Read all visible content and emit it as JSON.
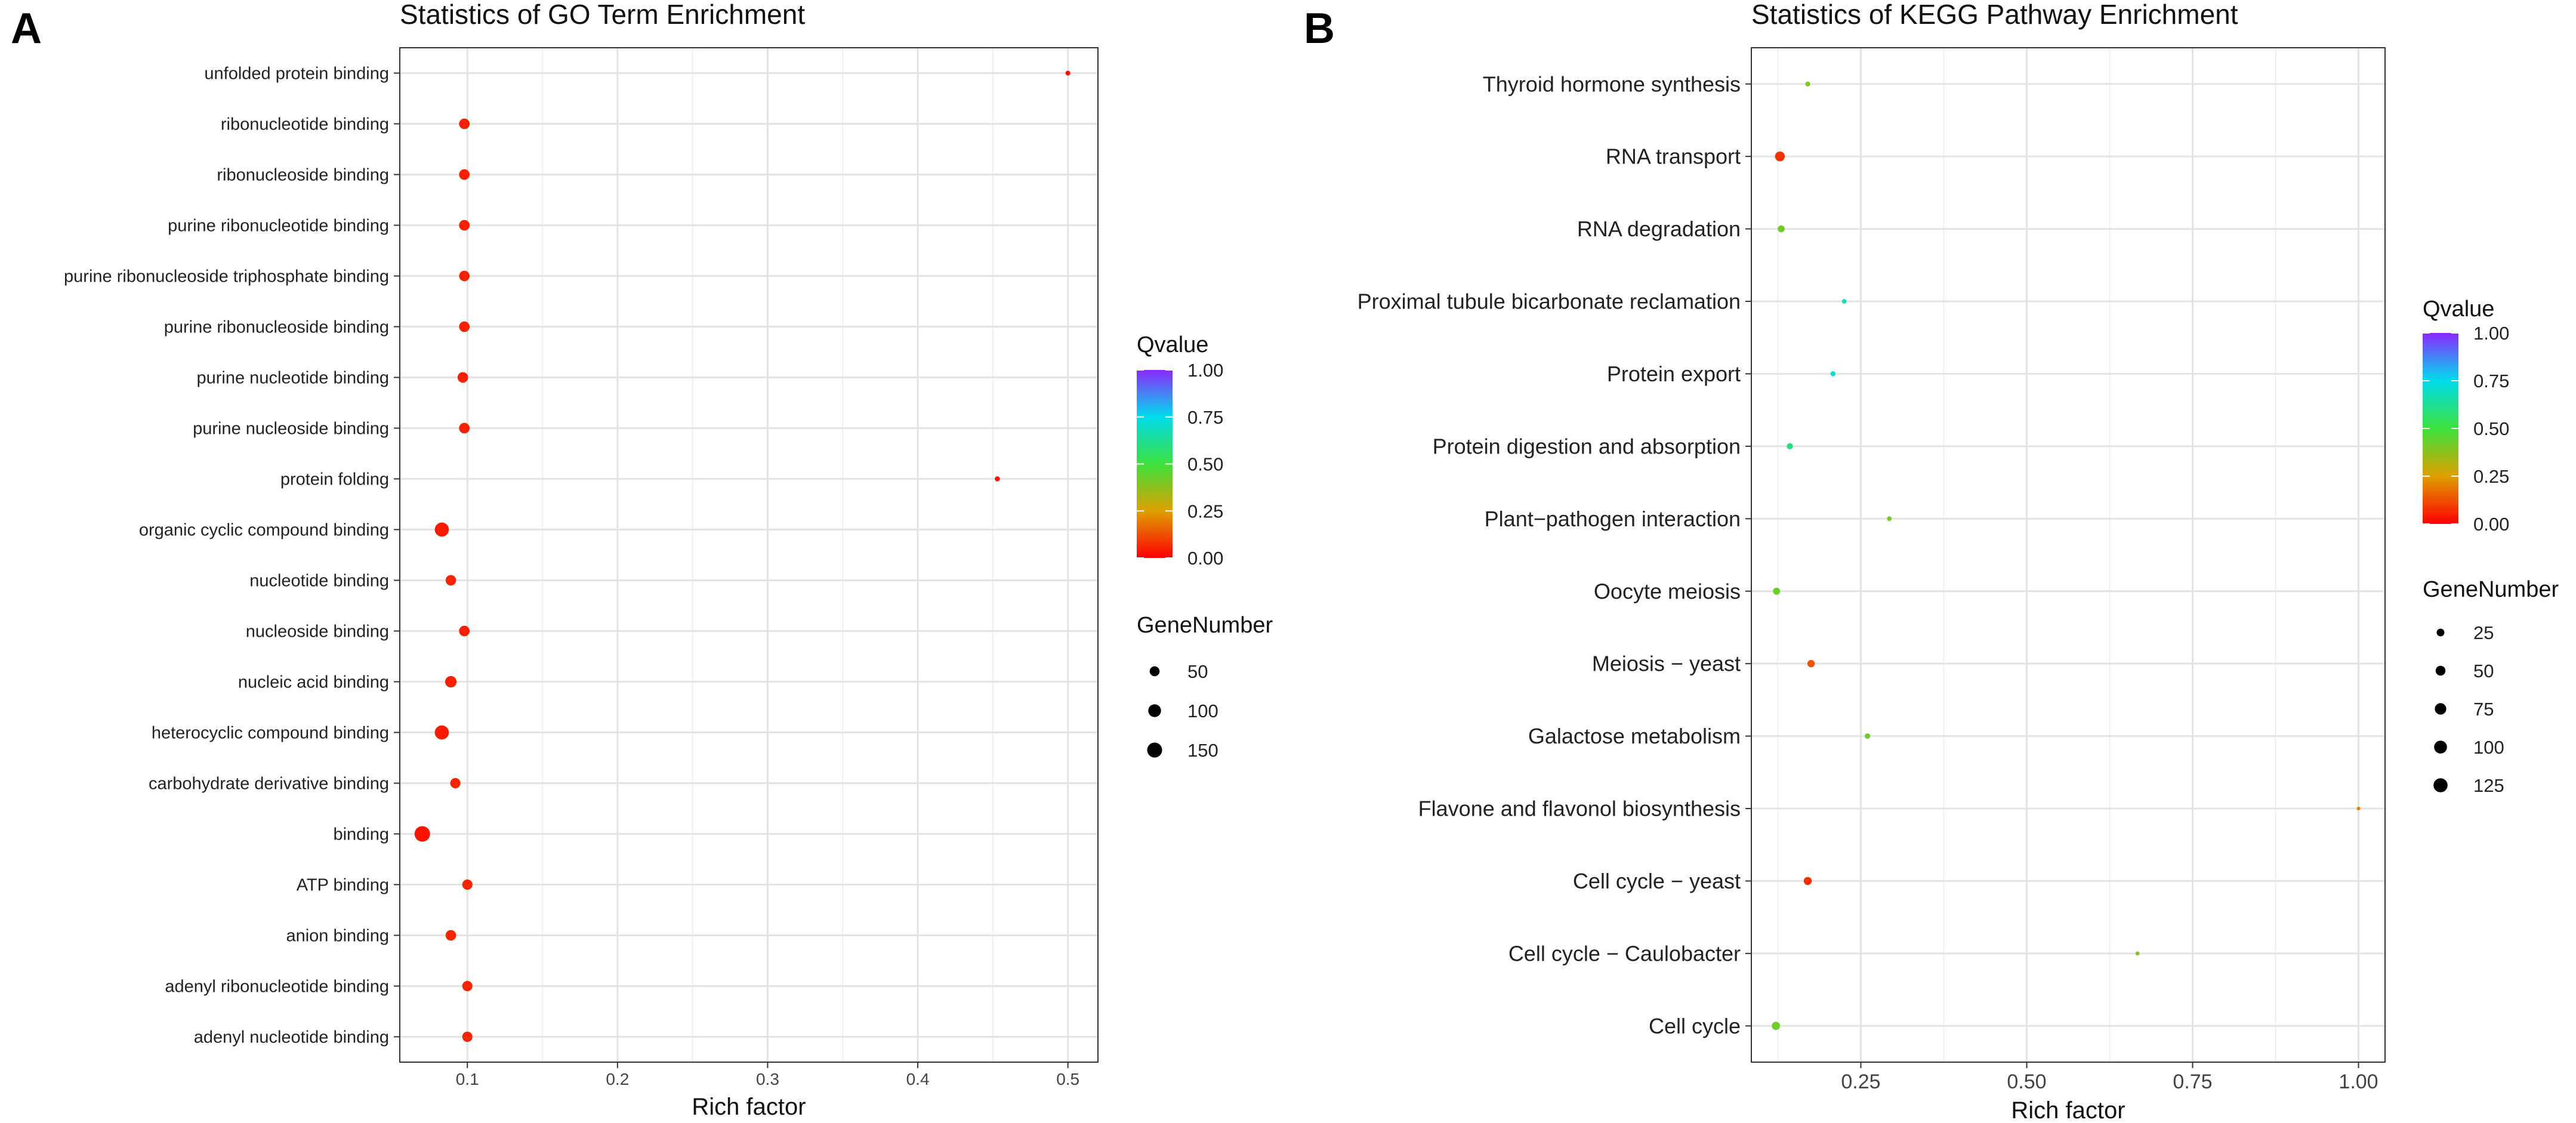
{
  "chart_data": [
    {
      "panel": "A",
      "type": "scatter",
      "title": "Statistics of GO Term Enrichment",
      "xlabel": "Rich factor",
      "ylabel": "",
      "xlim": [
        0.055,
        0.52
      ],
      "xticks": [
        0.1,
        0.2,
        0.3,
        0.4,
        0.5
      ],
      "xtick_labels": [
        "0.1",
        "0.2",
        "0.3",
        "0.4",
        "0.5"
      ],
      "grid": true,
      "points": [
        {
          "term": "unfolded protein binding",
          "rich": 0.5,
          "q": 0.02,
          "genes": 3
        },
        {
          "term": "ribonucleotide binding",
          "rich": 0.098,
          "q": 0.05,
          "genes": 60
        },
        {
          "term": "ribonucleoside binding",
          "rich": 0.098,
          "q": 0.05,
          "genes": 60
        },
        {
          "term": "purine ribonucleotide binding",
          "rich": 0.098,
          "q": 0.05,
          "genes": 60
        },
        {
          "term": "purine ribonucleoside triphosphate binding",
          "rich": 0.098,
          "q": 0.05,
          "genes": 58
        },
        {
          "term": "purine ribonucleoside binding",
          "rich": 0.098,
          "q": 0.05,
          "genes": 60
        },
        {
          "term": "purine nucleotide binding",
          "rich": 0.097,
          "q": 0.05,
          "genes": 60
        },
        {
          "term": "purine nucleoside binding",
          "rich": 0.098,
          "q": 0.05,
          "genes": 60
        },
        {
          "term": "protein folding",
          "rich": 0.453,
          "q": 0.03,
          "genes": 4
        },
        {
          "term": "organic cyclic compound binding",
          "rich": 0.083,
          "q": 0.04,
          "genes": 130
        },
        {
          "term": "nucleotide binding",
          "rich": 0.089,
          "q": 0.06,
          "genes": 58
        },
        {
          "term": "nucleoside binding",
          "rich": 0.098,
          "q": 0.05,
          "genes": 60
        },
        {
          "term": "nucleic acid binding",
          "rich": 0.089,
          "q": 0.05,
          "genes": 75
        },
        {
          "term": "heterocyclic compound binding",
          "rich": 0.083,
          "q": 0.04,
          "genes": 130
        },
        {
          "term": "carbohydrate derivative binding",
          "rich": 0.092,
          "q": 0.06,
          "genes": 55
        },
        {
          "term": "binding",
          "rich": 0.07,
          "q": 0.03,
          "genes": 165
        },
        {
          "term": "ATP binding",
          "rich": 0.1,
          "q": 0.06,
          "genes": 55
        },
        {
          "term": "anion binding",
          "rich": 0.089,
          "q": 0.06,
          "genes": 60
        },
        {
          "term": "adenyl ribonucleotide binding",
          "rich": 0.1,
          "q": 0.06,
          "genes": 55
        },
        {
          "term": "adenyl nucleotide binding",
          "rich": 0.1,
          "q": 0.06,
          "genes": 55
        }
      ],
      "legend_color": {
        "title": "Qvalue",
        "ticks": [
          "1.00",
          "0.75",
          "0.50",
          "0.25",
          "0.00"
        ]
      },
      "legend_size": {
        "title": "GeneNumber",
        "items": [
          {
            "label": "50",
            "value": 50
          },
          {
            "label": "100",
            "value": 100
          },
          {
            "label": "150",
            "value": 150
          }
        ]
      }
    },
    {
      "panel": "B",
      "type": "scatter",
      "title": "Statistics of KEGG Pathway Enrichment",
      "xlabel": "Rich factor",
      "ylabel": "",
      "xlim": [
        0.085,
        1.04
      ],
      "xticks": [
        0.25,
        0.5,
        0.75,
        1.0
      ],
      "xtick_labels": [
        "0.25",
        "0.50",
        "0.75",
        "1.00"
      ],
      "grid": true,
      "points": [
        {
          "term": "Thyroid hormone synthesis",
          "rich": 0.17,
          "q": 0.4,
          "genes": 5
        },
        {
          "term": "RNA transport",
          "rich": 0.128,
          "q": 0.08,
          "genes": 50
        },
        {
          "term": "RNA degradation",
          "rich": 0.13,
          "q": 0.42,
          "genes": 18
        },
        {
          "term": "Proximal tubule bicarbonate reclamation",
          "rich": 0.225,
          "q": 0.68,
          "genes": 4
        },
        {
          "term": "Protein export",
          "rich": 0.208,
          "q": 0.72,
          "genes": 6
        },
        {
          "term": "Protein digestion and absorption",
          "rich": 0.143,
          "q": 0.6,
          "genes": 12
        },
        {
          "term": "Plant−pathogen interaction",
          "rich": 0.293,
          "q": 0.42,
          "genes": 4
        },
        {
          "term": "Oocyte meiosis",
          "rich": 0.123,
          "q": 0.43,
          "genes": 20
        },
        {
          "term": "Meiosis − yeast",
          "rich": 0.175,
          "q": 0.13,
          "genes": 22
        },
        {
          "term": "Galactose metabolism",
          "rich": 0.26,
          "q": 0.42,
          "genes": 8
        },
        {
          "term": "Flavone and flavonol biosynthesis",
          "rich": 1.0,
          "q": 0.2,
          "genes": 1
        },
        {
          "term": "Cell cycle − yeast",
          "rich": 0.17,
          "q": 0.07,
          "genes": 28
        },
        {
          "term": "Cell cycle − Caulobacter",
          "rich": 0.667,
          "q": 0.38,
          "genes": 2
        },
        {
          "term": "Cell cycle",
          "rich": 0.122,
          "q": 0.42,
          "genes": 30
        }
      ],
      "legend_color": {
        "title": "Qvalue",
        "ticks": [
          "1.00",
          "0.75",
          "0.50",
          "0.25",
          "0.00"
        ]
      },
      "legend_size": {
        "title": "GeneNumber",
        "items": [
          {
            "label": "25",
            "value": 25
          },
          {
            "label": "50",
            "value": 50
          },
          {
            "label": "75",
            "value": 75
          },
          {
            "label": "100",
            "value": 100
          },
          {
            "label": "125",
            "value": 125
          }
        ]
      }
    }
  ]
}
